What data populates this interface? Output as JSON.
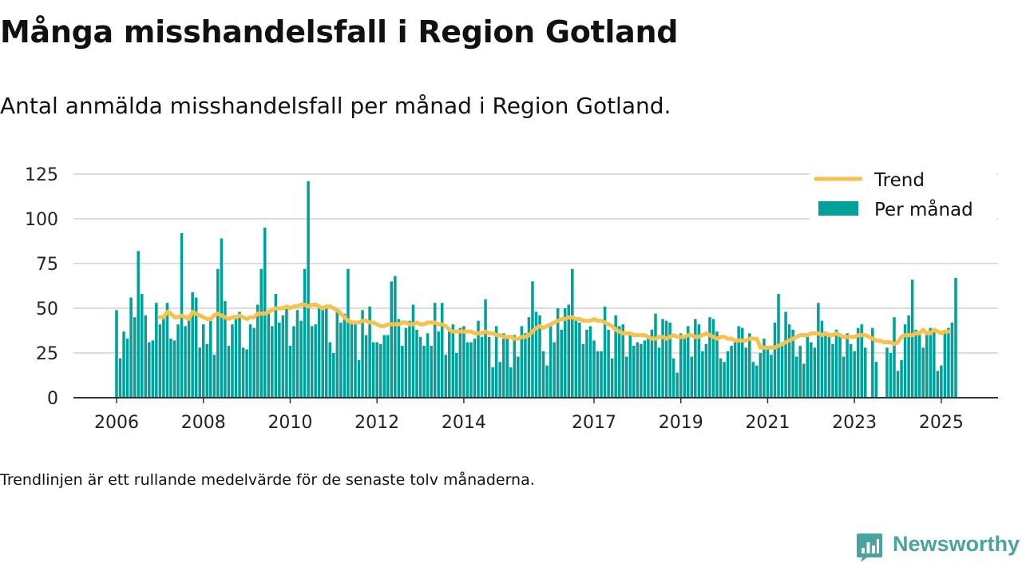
{
  "title": "Många misshandelsfall i Region Gotland",
  "subtitle": "Antal anmälda misshandelsfall per månad i Region Gotland.",
  "note": "Trendlinjen är ett rullande medelvärde för de senaste tolv månaderna.",
  "brand": {
    "name": "Newsworthy"
  },
  "colors": {
    "bars": "#00A19A",
    "trend": "#F7C14E",
    "grid": "#DDDDDD",
    "axis": "#333333",
    "brand": "#49A3A0"
  },
  "chart_data": {
    "type": "bar",
    "xlabel": "",
    "ylabel": "",
    "ylim": [
      0,
      125
    ],
    "yticks": [
      "0",
      "25",
      "50",
      "75",
      "100",
      "125"
    ],
    "xticks": [
      "2006",
      "2008",
      "2010",
      "2012",
      "2014",
      "2017",
      "2019",
      "2021",
      "2023",
      "2025"
    ],
    "grid": true,
    "legend_position": "top-right",
    "start_month": "2006-01",
    "series": [
      {
        "name": "Per månad",
        "type": "bar",
        "values": [
          49,
          22,
          37,
          33,
          56,
          45,
          82,
          58,
          46,
          31,
          32,
          53,
          41,
          45,
          53,
          33,
          32,
          41,
          92,
          40,
          46,
          59,
          56,
          28,
          41,
          30,
          43,
          24,
          72,
          89,
          54,
          29,
          41,
          46,
          48,
          28,
          27,
          41,
          39,
          52,
          72,
          95,
          48,
          40,
          58,
          42,
          46,
          51,
          29,
          40,
          49,
          43,
          72,
          121,
          40,
          41,
          52,
          49,
          51,
          31,
          25,
          49,
          42,
          47,
          72,
          43,
          42,
          21,
          49,
          35,
          51,
          31,
          31,
          30,
          35,
          35,
          65,
          68,
          44,
          29,
          39,
          43,
          52,
          38,
          34,
          29,
          36,
          29,
          53,
          37,
          53,
          24,
          37,
          41,
          25,
          39,
          40,
          31,
          31,
          33,
          43,
          34,
          55,
          34,
          17,
          40,
          20,
          36,
          33,
          17,
          35,
          23,
          40,
          36,
          45,
          65,
          48,
          46,
          26,
          18,
          40,
          31,
          50,
          38,
          50,
          52,
          72,
          45,
          42,
          30,
          38,
          40,
          32,
          26,
          26,
          51,
          38,
          22,
          46,
          40,
          41,
          23,
          35,
          29,
          31,
          30,
          32,
          34,
          38,
          47,
          28,
          44,
          43,
          42,
          22,
          14,
          36,
          34,
          40,
          23,
          44,
          41,
          26,
          30,
          45,
          44,
          37,
          22,
          20,
          26,
          29,
          31,
          40,
          39,
          28,
          36,
          20,
          18,
          25,
          33,
          27,
          24,
          42,
          58,
          29,
          48,
          41,
          38,
          23,
          29,
          19,
          36,
          31,
          28,
          53,
          43,
          37,
          34,
          30,
          38,
          35,
          23,
          36,
          30,
          26,
          39,
          41,
          28,
          0,
          39,
          20,
          0,
          0,
          28,
          25,
          45,
          15,
          21,
          41,
          46,
          66,
          38,
          35,
          28,
          36,
          39,
          38,
          15,
          18,
          37,
          39,
          42,
          67
        ]
      },
      {
        "name": "Trend",
        "type": "line",
        "values": [
          null,
          null,
          null,
          null,
          null,
          null,
          null,
          null,
          null,
          null,
          null,
          null,
          45,
          45,
          48,
          47,
          45,
          45,
          46,
          45,
          44,
          48,
          47,
          46,
          45,
          44,
          44,
          46,
          47,
          46,
          45,
          44,
          45,
          45,
          46,
          45,
          44,
          45,
          45,
          47,
          47,
          47,
          48,
          49,
          50,
          50,
          50,
          51,
          50,
          51,
          51,
          52,
          52,
          51,
          52,
          52,
          51,
          50,
          51,
          51,
          50,
          49,
          47,
          45,
          43,
          42,
          42,
          42,
          43,
          43,
          42,
          42,
          41,
          40,
          40,
          41,
          41,
          41,
          41,
          42,
          42,
          41,
          41,
          42,
          41,
          41,
          42,
          42,
          42,
          41,
          41,
          40,
          38,
          37,
          37,
          37,
          37,
          37,
          37,
          36,
          36,
          36,
          37,
          36,
          36,
          35,
          35,
          34,
          34,
          34,
          33,
          33,
          34,
          34,
          35,
          37,
          39,
          40,
          39,
          40,
          41,
          42,
          43,
          44,
          44,
          45,
          45,
          44,
          44,
          43,
          43,
          43,
          44,
          43,
          43,
          42,
          41,
          40,
          38,
          37,
          36,
          36,
          36,
          35,
          35,
          35,
          35,
          34,
          33,
          33,
          34,
          34,
          33,
          34,
          35,
          34,
          34,
          34,
          35,
          35,
          34,
          34,
          35,
          36,
          35,
          34,
          33,
          34,
          34,
          33,
          33,
          32,
          32,
          32,
          32,
          33,
          33,
          33,
          28,
          28,
          28,
          28,
          28,
          29,
          30,
          31,
          32,
          33,
          34,
          35,
          35,
          35,
          36,
          36,
          36,
          35,
          36,
          35,
          35,
          36,
          35,
          34,
          34,
          34,
          34,
          35,
          35,
          35,
          34,
          33,
          32,
          32,
          31,
          31,
          31,
          30,
          31,
          34,
          35,
          35,
          35,
          36,
          36,
          38,
          36,
          36,
          38,
          37,
          36,
          37,
          37
        ]
      }
    ]
  }
}
